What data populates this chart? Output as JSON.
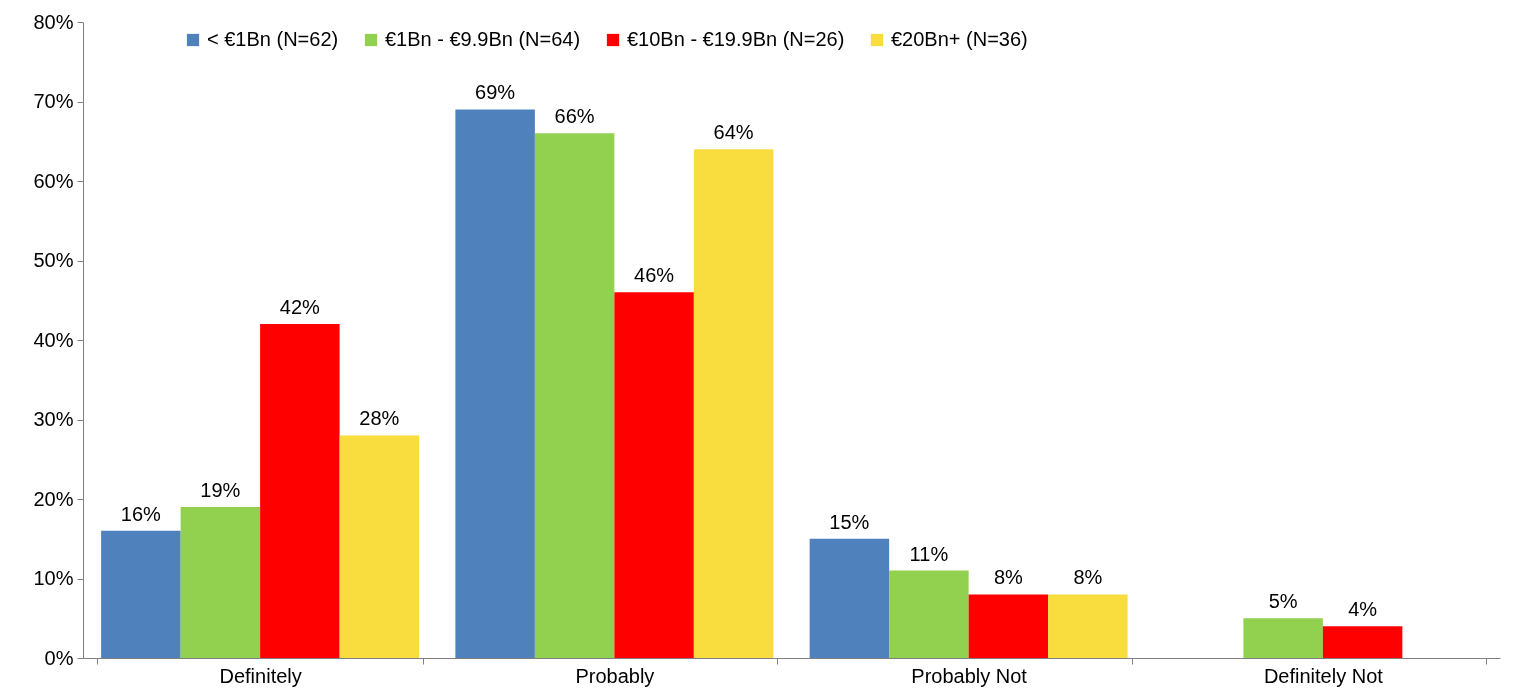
{
  "chart_data": {
    "type": "bar",
    "categories": [
      "Definitely",
      "Probably",
      "Probably Not",
      "Definitely Not"
    ],
    "series": [
      {
        "name": "< €1Bn (N=62)",
        "color": "#4f81bd",
        "values": [
          16,
          69,
          15,
          null
        ],
        "value_labels": [
          "16%",
          "69%",
          "15%",
          null
        ]
      },
      {
        "name": "€1Bn - €9.9Bn (N=64)",
        "color": "#92d050",
        "values": [
          19,
          66,
          11,
          5
        ],
        "value_labels": [
          "19%",
          "66%",
          "11%",
          "5%"
        ]
      },
      {
        "name": "€10Bn - €19.9Bn (N=26)",
        "color": "#ff0000",
        "values": [
          42,
          46,
          8,
          4
        ],
        "value_labels": [
          "42%",
          "46%",
          "8%",
          "4%"
        ]
      },
      {
        "name": "€20Bn+ (N=36)",
        "color": "#f9dc3e",
        "values": [
          28,
          64,
          8,
          null
        ],
        "value_labels": [
          "28%",
          "64%",
          "8%",
          null
        ]
      }
    ],
    "ylim": [
      0,
      80
    ],
    "yticks": [
      {
        "value": 0,
        "label": "0%"
      },
      {
        "value": 10,
        "label": "10%"
      },
      {
        "value": 20,
        "label": "20%"
      },
      {
        "value": 30,
        "label": "30%"
      },
      {
        "value": 40,
        "label": "40%"
      },
      {
        "value": 50,
        "label": "50%"
      },
      {
        "value": 60,
        "label": "60%"
      },
      {
        "value": 70,
        "label": "70%"
      },
      {
        "value": 80,
        "label": "80%"
      }
    ],
    "grid": false,
    "legend": "top"
  }
}
